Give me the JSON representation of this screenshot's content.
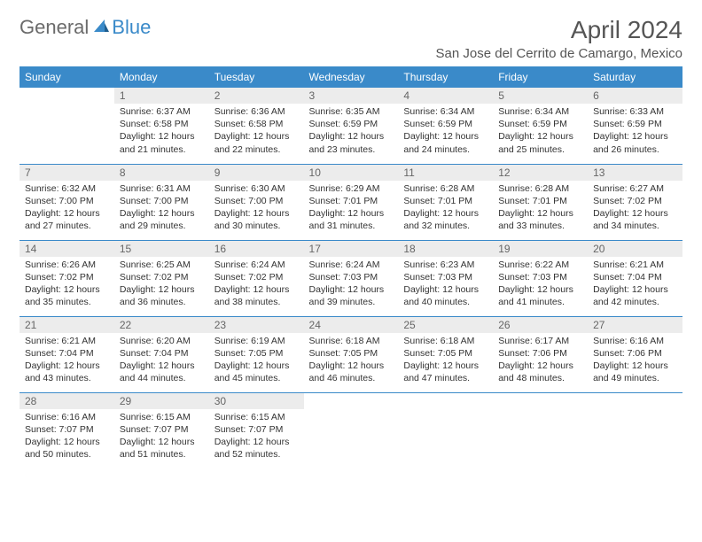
{
  "logo": {
    "general": "General",
    "blue": "Blue"
  },
  "title": "April 2024",
  "location": "San Jose del Cerrito de Camargo, Mexico",
  "colors": {
    "header_bg": "#3a8ac9",
    "header_text": "#ffffff",
    "daynum_bg": "#ececec",
    "daynum_text": "#666666",
    "body_text": "#333333",
    "border": "#3a8ac9",
    "logo_gray": "#6b6b6b",
    "logo_blue": "#3a8ac9"
  },
  "weekdays": [
    "Sunday",
    "Monday",
    "Tuesday",
    "Wednesday",
    "Thursday",
    "Friday",
    "Saturday"
  ],
  "weeks": [
    [
      null,
      {
        "n": "1",
        "sr": "6:37 AM",
        "ss": "6:58 PM",
        "dl": "12 hours and 21 minutes."
      },
      {
        "n": "2",
        "sr": "6:36 AM",
        "ss": "6:58 PM",
        "dl": "12 hours and 22 minutes."
      },
      {
        "n": "3",
        "sr": "6:35 AM",
        "ss": "6:59 PM",
        "dl": "12 hours and 23 minutes."
      },
      {
        "n": "4",
        "sr": "6:34 AM",
        "ss": "6:59 PM",
        "dl": "12 hours and 24 minutes."
      },
      {
        "n": "5",
        "sr": "6:34 AM",
        "ss": "6:59 PM",
        "dl": "12 hours and 25 minutes."
      },
      {
        "n": "6",
        "sr": "6:33 AM",
        "ss": "6:59 PM",
        "dl": "12 hours and 26 minutes."
      }
    ],
    [
      {
        "n": "7",
        "sr": "6:32 AM",
        "ss": "7:00 PM",
        "dl": "12 hours and 27 minutes."
      },
      {
        "n": "8",
        "sr": "6:31 AM",
        "ss": "7:00 PM",
        "dl": "12 hours and 29 minutes."
      },
      {
        "n": "9",
        "sr": "6:30 AM",
        "ss": "7:00 PM",
        "dl": "12 hours and 30 minutes."
      },
      {
        "n": "10",
        "sr": "6:29 AM",
        "ss": "7:01 PM",
        "dl": "12 hours and 31 minutes."
      },
      {
        "n": "11",
        "sr": "6:28 AM",
        "ss": "7:01 PM",
        "dl": "12 hours and 32 minutes."
      },
      {
        "n": "12",
        "sr": "6:28 AM",
        "ss": "7:01 PM",
        "dl": "12 hours and 33 minutes."
      },
      {
        "n": "13",
        "sr": "6:27 AM",
        "ss": "7:02 PM",
        "dl": "12 hours and 34 minutes."
      }
    ],
    [
      {
        "n": "14",
        "sr": "6:26 AM",
        "ss": "7:02 PM",
        "dl": "12 hours and 35 minutes."
      },
      {
        "n": "15",
        "sr": "6:25 AM",
        "ss": "7:02 PM",
        "dl": "12 hours and 36 minutes."
      },
      {
        "n": "16",
        "sr": "6:24 AM",
        "ss": "7:02 PM",
        "dl": "12 hours and 38 minutes."
      },
      {
        "n": "17",
        "sr": "6:24 AM",
        "ss": "7:03 PM",
        "dl": "12 hours and 39 minutes."
      },
      {
        "n": "18",
        "sr": "6:23 AM",
        "ss": "7:03 PM",
        "dl": "12 hours and 40 minutes."
      },
      {
        "n": "19",
        "sr": "6:22 AM",
        "ss": "7:03 PM",
        "dl": "12 hours and 41 minutes."
      },
      {
        "n": "20",
        "sr": "6:21 AM",
        "ss": "7:04 PM",
        "dl": "12 hours and 42 minutes."
      }
    ],
    [
      {
        "n": "21",
        "sr": "6:21 AM",
        "ss": "7:04 PM",
        "dl": "12 hours and 43 minutes."
      },
      {
        "n": "22",
        "sr": "6:20 AM",
        "ss": "7:04 PM",
        "dl": "12 hours and 44 minutes."
      },
      {
        "n": "23",
        "sr": "6:19 AM",
        "ss": "7:05 PM",
        "dl": "12 hours and 45 minutes."
      },
      {
        "n": "24",
        "sr": "6:18 AM",
        "ss": "7:05 PM",
        "dl": "12 hours and 46 minutes."
      },
      {
        "n": "25",
        "sr": "6:18 AM",
        "ss": "7:05 PM",
        "dl": "12 hours and 47 minutes."
      },
      {
        "n": "26",
        "sr": "6:17 AM",
        "ss": "7:06 PM",
        "dl": "12 hours and 48 minutes."
      },
      {
        "n": "27",
        "sr": "6:16 AM",
        "ss": "7:06 PM",
        "dl": "12 hours and 49 minutes."
      }
    ],
    [
      {
        "n": "28",
        "sr": "6:16 AM",
        "ss": "7:07 PM",
        "dl": "12 hours and 50 minutes."
      },
      {
        "n": "29",
        "sr": "6:15 AM",
        "ss": "7:07 PM",
        "dl": "12 hours and 51 minutes."
      },
      {
        "n": "30",
        "sr": "6:15 AM",
        "ss": "7:07 PM",
        "dl": "12 hours and 52 minutes."
      },
      null,
      null,
      null,
      null
    ]
  ],
  "labels": {
    "sunrise": "Sunrise:",
    "sunset": "Sunset:",
    "daylight": "Daylight:"
  }
}
